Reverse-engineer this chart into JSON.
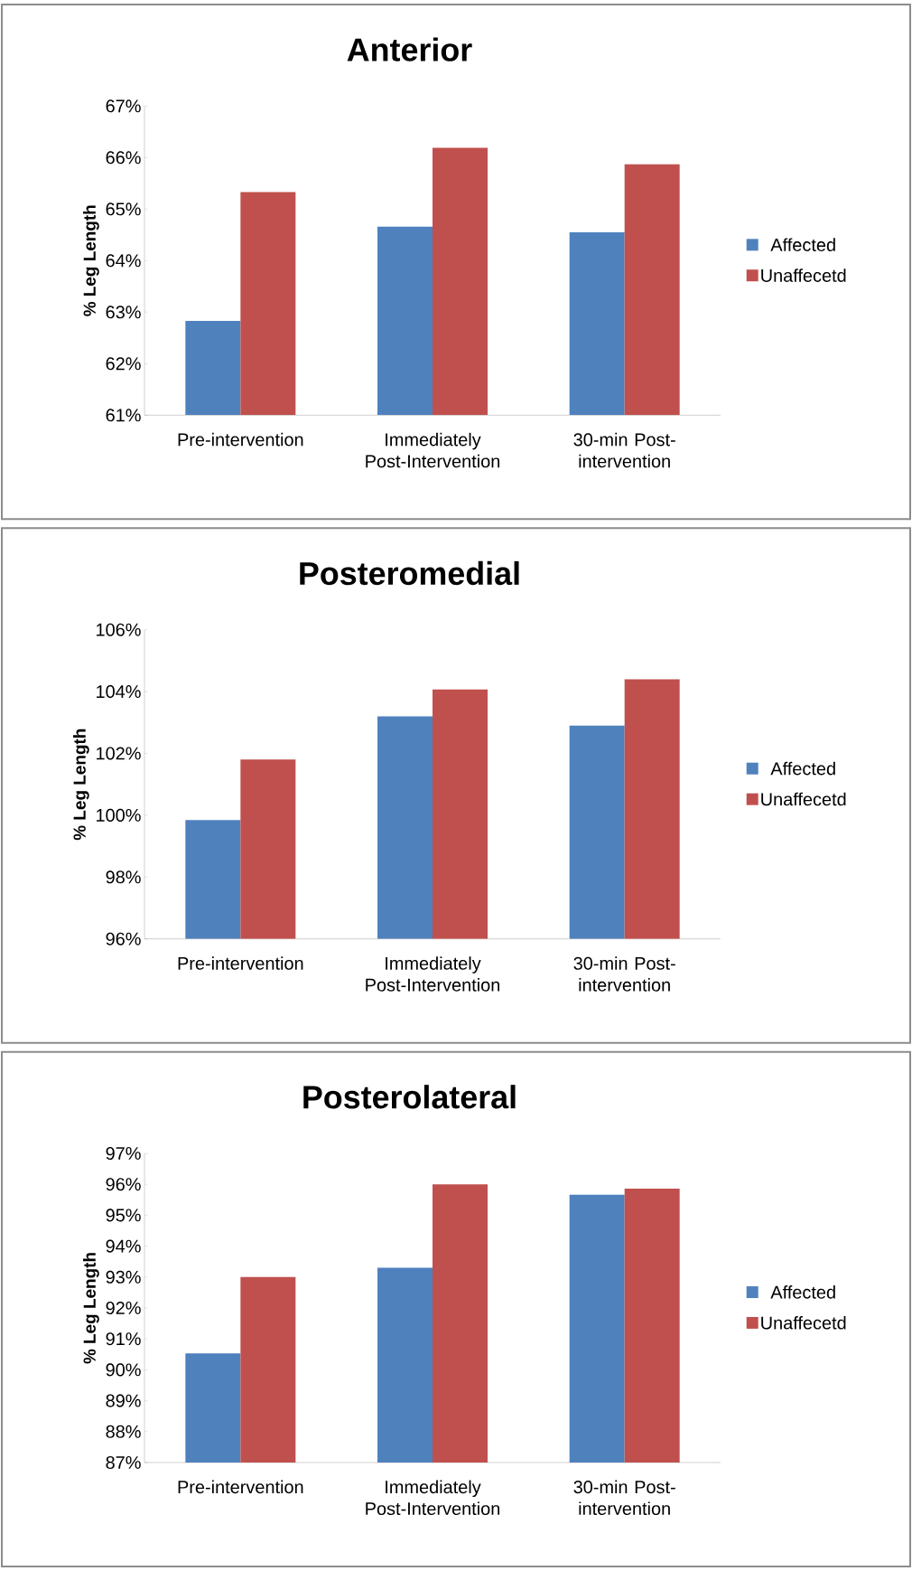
{
  "chart_data": [
    {
      "type": "bar",
      "title": "Anterior",
      "ylabel": "% Leg Length",
      "categories": [
        "Pre-intervention",
        "Immediately Post-Intervention",
        "30-min Post-intervention"
      ],
      "series": [
        {
          "name": "Affected",
          "color": "#4f81bd",
          "values": [
            62.83,
            64.66,
            64.55
          ]
        },
        {
          "name": "Unaffecetd",
          "color": "#c0504d",
          "values": [
            65.33,
            66.19,
            65.87
          ]
        }
      ],
      "ylim": [
        61,
        67
      ],
      "yticks": [
        {
          "value": 61,
          "label": "61%"
        },
        {
          "value": 62,
          "label": "62%"
        },
        {
          "value": 63,
          "label": "63%"
        },
        {
          "value": 64,
          "label": "64%"
        },
        {
          "value": 65,
          "label": "65%"
        },
        {
          "value": 66,
          "label": "66%"
        },
        {
          "value": 67,
          "label": "67%"
        }
      ],
      "legend": "right"
    },
    {
      "type": "bar",
      "title": "Posteromedial",
      "ylabel": "% Leg Length",
      "categories": [
        "Pre-intervention",
        "Immediately Post-Intervention",
        "30-min Post-intervention"
      ],
      "series": [
        {
          "name": "Affected",
          "color": "#4f81bd",
          "values": [
            99.84,
            103.2,
            102.9
          ]
        },
        {
          "name": "Unaffecetd",
          "color": "#c0504d",
          "values": [
            101.8,
            104.07,
            104.4
          ]
        }
      ],
      "ylim": [
        96,
        106
      ],
      "yticks": [
        {
          "value": 96,
          "label": "96%"
        },
        {
          "value": 98,
          "label": "98%"
        },
        {
          "value": 100,
          "label": "100%"
        },
        {
          "value": 102,
          "label": "102%"
        },
        {
          "value": 104,
          "label": "104%"
        },
        {
          "value": 106,
          "label": "106%"
        }
      ],
      "legend": "right"
    },
    {
      "type": "bar",
      "title": "Posterolateral",
      "ylabel": "% Leg Length",
      "categories": [
        "Pre-intervention",
        "Immediately Post-Intervention",
        "30-min Post-intervention"
      ],
      "series": [
        {
          "name": "Affected",
          "color": "#4f81bd",
          "values": [
            90.53,
            93.3,
            95.66
          ]
        },
        {
          "name": "Unaffecetd",
          "color": "#c0504d",
          "values": [
            93.0,
            96.0,
            95.86
          ]
        }
      ],
      "ylim": [
        87,
        97
      ],
      "yticks": [
        {
          "value": 87,
          "label": "87%"
        },
        {
          "value": 88,
          "label": "88%"
        },
        {
          "value": 89,
          "label": "89%"
        },
        {
          "value": 90,
          "label": "90%"
        },
        {
          "value": 91,
          "label": "91%"
        },
        {
          "value": 92,
          "label": "92%"
        },
        {
          "value": 93,
          "label": "93%"
        },
        {
          "value": 94,
          "label": "94%"
        },
        {
          "value": 95,
          "label": "95%"
        },
        {
          "value": 96,
          "label": "96%"
        },
        {
          "value": 97,
          "label": "97%"
        }
      ],
      "legend": "right"
    }
  ]
}
